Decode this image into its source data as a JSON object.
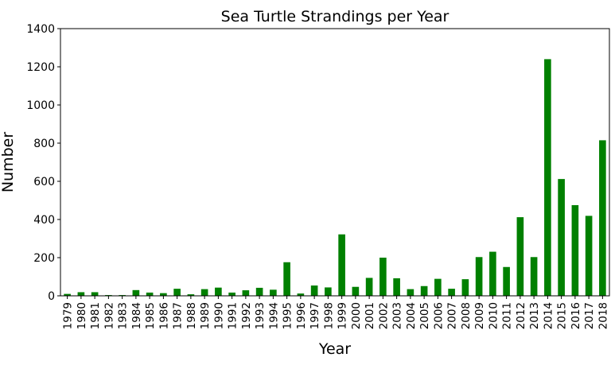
{
  "chart_data": {
    "type": "bar",
    "title": "Sea Turtle Strandings per Year",
    "xlabel": "Year",
    "ylabel": "Number",
    "ylim": [
      0,
      1400
    ],
    "yticks": [
      0,
      200,
      400,
      600,
      800,
      1000,
      1200,
      1400
    ],
    "categories": [
      "1979",
      "1980",
      "1981",
      "1982",
      "1983",
      "1984",
      "1985",
      "1986",
      "1987",
      "1988",
      "1989",
      "1990",
      "1991",
      "1992",
      "1993",
      "1994",
      "1995",
      "1996",
      "1997",
      "1998",
      "1999",
      "2000",
      "2001",
      "2002",
      "2003",
      "2004",
      "2005",
      "2006",
      "2007",
      "2008",
      "2009",
      "2010",
      "2011",
      "2012",
      "2013",
      "2014",
      "2015",
      "2016",
      "2017",
      "2018"
    ],
    "values": [
      10,
      19,
      19,
      4,
      4,
      30,
      17,
      14,
      37,
      8,
      35,
      43,
      17,
      29,
      42,
      32,
      176,
      12,
      54,
      44,
      322,
      47,
      94,
      200,
      92,
      35,
      51,
      89,
      37,
      87,
      203,
      231,
      151,
      412,
      203,
      1240,
      612,
      475,
      419,
      815
    ],
    "bar_color": "#008000",
    "grid": false,
    "legend": "none"
  }
}
